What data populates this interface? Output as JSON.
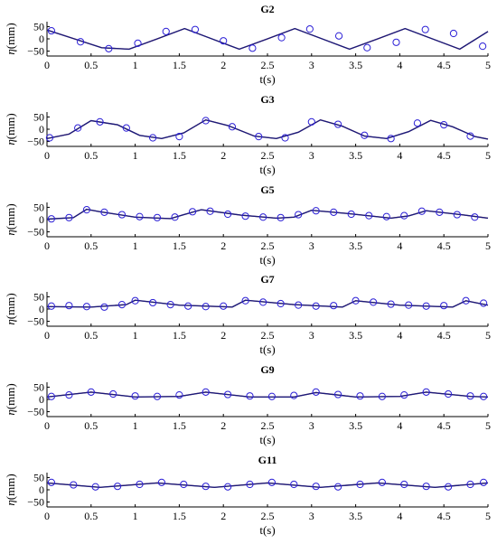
{
  "chart_data": [
    {
      "type": "line",
      "title": "G2",
      "xlabel": "t(s)",
      "ylabel_symbol": "η",
      "ylabel_unit": "(mm)",
      "xlim": [
        0,
        5
      ],
      "ylim": [
        -70,
        70
      ],
      "x_ticks": [
        0,
        0.5,
        1,
        1.5,
        2,
        2.5,
        3,
        3.5,
        4,
        4.5,
        5
      ],
      "x_tick_labels": [
        "0",
        "0.5",
        "1",
        "1.5",
        "2",
        "2.5",
        "3",
        "3.5",
        "4",
        "4.5",
        "5"
      ],
      "y_ticks": [
        50,
        0,
        -50
      ],
      "y_tick_labels": [
        "50",
        "0",
        "−50"
      ],
      "series": [
        {
          "kind": "line",
          "color": "#1a1a7a",
          "x": [
            0,
            0.31,
            0.62,
            0.93,
            1.25,
            1.56,
            1.87,
            2.18,
            2.5,
            2.81,
            3.12,
            3.43,
            3.75,
            4.06,
            4.37,
            4.68,
            5
          ],
          "y": [
            36,
            0,
            -36,
            -42,
            0,
            42,
            0,
            -42,
            0,
            42,
            0,
            -42,
            0,
            42,
            0,
            -42,
            30
          ]
        },
        {
          "kind": "markers",
          "color": "#2b1fd6",
          "x": [
            0.05,
            0.38,
            0.7,
            1.03,
            1.35,
            1.68,
            2.0,
            2.33,
            2.66,
            2.98,
            3.31,
            3.63,
            3.96,
            4.29,
            4.61,
            4.94
          ],
          "y": [
            33,
            -12,
            -40,
            -18,
            30,
            38,
            -8,
            -38,
            5,
            40,
            12,
            -36,
            -14,
            38,
            22,
            -30
          ]
        }
      ]
    },
    {
      "type": "line",
      "title": "G3",
      "xlabel": "t(s)",
      "ylabel_symbol": "η",
      "ylabel_unit": "(mm)",
      "xlim": [
        0,
        5
      ],
      "ylim": [
        -70,
        70
      ],
      "x_ticks": [
        0,
        0.5,
        1,
        1.5,
        2,
        2.5,
        3,
        3.5,
        4,
        4.5,
        5
      ],
      "x_tick_labels": [
        "0",
        "0.5",
        "1",
        "1.5",
        "2",
        "2.5",
        "3",
        "3.5",
        "4",
        "4.5",
        "5"
      ],
      "y_ticks": [
        50,
        0,
        -50
      ],
      "y_tick_labels": [
        "50",
        "0",
        "−50"
      ],
      "series": [
        {
          "kind": "line",
          "color": "#1a1a7a",
          "x": [
            0,
            0.25,
            0.5,
            0.8,
            1.05,
            1.3,
            1.55,
            1.8,
            2.05,
            2.35,
            2.6,
            2.85,
            3.1,
            3.35,
            3.6,
            3.85,
            4.1,
            4.35,
            4.6,
            4.85,
            5
          ],
          "y": [
            -38,
            -20,
            35,
            18,
            -25,
            -38,
            -15,
            38,
            15,
            -28,
            -38,
            -12,
            38,
            12,
            -28,
            -38,
            -10,
            36,
            10,
            -30,
            -40
          ]
        },
        {
          "kind": "markers",
          "color": "#2b1fd6",
          "x": [
            0.03,
            0.35,
            0.6,
            0.9,
            1.2,
            1.5,
            1.8,
            2.1,
            2.4,
            2.7,
            3.0,
            3.3,
            3.6,
            3.9,
            4.2,
            4.5,
            4.8
          ],
          "y": [
            -35,
            5,
            30,
            5,
            -35,
            -30,
            35,
            10,
            -30,
            -35,
            30,
            20,
            -25,
            -38,
            25,
            18,
            -28
          ]
        }
      ]
    },
    {
      "type": "line",
      "title": "G5",
      "xlabel": "t(s)",
      "ylabel_symbol": "η",
      "ylabel_unit": "(mm)",
      "xlim": [
        0,
        5
      ],
      "ylim": [
        -70,
        70
      ],
      "x_ticks": [
        0,
        0.5,
        1,
        1.5,
        2,
        2.5,
        3,
        3.5,
        4,
        4.5,
        5
      ],
      "x_tick_labels": [
        "0",
        "0.5",
        "1",
        "1.5",
        "2",
        "2.5",
        "3",
        "3.5",
        "4",
        "4.5",
        "5"
      ],
      "y_ticks": [
        50,
        0,
        -50
      ],
      "y_tick_labels": [
        "50",
        "0",
        "−50"
      ],
      "series": [
        {
          "kind": "line",
          "color": "#1a1a7a",
          "x": [
            0,
            0.3,
            0.45,
            0.6,
            1.0,
            1.4,
            1.55,
            1.75,
            2.2,
            2.6,
            2.8,
            3.0,
            3.4,
            3.9,
            4.1,
            4.3,
            4.7,
            5
          ],
          "y": [
            2,
            8,
            42,
            32,
            10,
            4,
            20,
            40,
            18,
            6,
            10,
            38,
            25,
            6,
            15,
            36,
            20,
            6
          ]
        },
        {
          "kind": "markers",
          "color": "#2b1fd6",
          "x": [
            0.05,
            0.25,
            0.45,
            0.65,
            0.85,
            1.05,
            1.25,
            1.45,
            1.65,
            1.85,
            2.05,
            2.25,
            2.45,
            2.65,
            2.85,
            3.05,
            3.25,
            3.45,
            3.65,
            3.85,
            4.05,
            4.25,
            4.45,
            4.65,
            4.85
          ],
          "y": [
            3,
            8,
            40,
            30,
            20,
            12,
            8,
            10,
            32,
            34,
            22,
            14,
            10,
            8,
            20,
            36,
            30,
            22,
            16,
            12,
            16,
            34,
            30,
            20,
            10
          ]
        }
      ]
    },
    {
      "type": "line",
      "title": "G7",
      "xlabel": "t(s)",
      "ylabel_symbol": "η",
      "ylabel_unit": "(mm)",
      "xlim": [
        0,
        5
      ],
      "ylim": [
        -70,
        70
      ],
      "x_ticks": [
        0,
        0.5,
        1,
        1.5,
        2,
        2.5,
        3,
        3.5,
        4,
        4.5,
        5
      ],
      "x_tick_labels": [
        "0",
        "0.5",
        "1",
        "1.5",
        "2",
        "2.5",
        "3",
        "3.5",
        "4",
        "4.5",
        "5"
      ],
      "y_ticks": [
        50,
        0,
        -50
      ],
      "y_tick_labels": [
        "50",
        "0",
        "−50"
      ],
      "series": [
        {
          "kind": "line",
          "color": "#1a1a7a",
          "x": [
            0,
            0.5,
            0.9,
            1.0,
            1.5,
            2.1,
            2.25,
            2.8,
            3.35,
            3.5,
            4.0,
            4.6,
            4.75,
            5
          ],
          "y": [
            10,
            8,
            18,
            36,
            16,
            8,
            36,
            18,
            8,
            34,
            16,
            8,
            34,
            16
          ]
        },
        {
          "kind": "markers",
          "color": "#2b1fd6",
          "x": [
            0.05,
            0.25,
            0.45,
            0.65,
            0.85,
            1.0,
            1.2,
            1.4,
            1.6,
            1.8,
            2.0,
            2.25,
            2.45,
            2.65,
            2.85,
            3.05,
            3.25,
            3.5,
            3.7,
            3.9,
            4.1,
            4.3,
            4.5,
            4.75,
            4.95
          ],
          "y": [
            12,
            14,
            10,
            8,
            18,
            34,
            26,
            18,
            12,
            10,
            12,
            34,
            28,
            22,
            16,
            12,
            14,
            34,
            28,
            20,
            16,
            12,
            14,
            34,
            24
          ]
        }
      ]
    },
    {
      "type": "line",
      "title": "G9",
      "xlabel": "t(s)",
      "ylabel_symbol": "η",
      "ylabel_unit": "(mm)",
      "xlim": [
        0,
        5
      ],
      "ylim": [
        -70,
        70
      ],
      "x_ticks": [
        0,
        0.5,
        1,
        1.5,
        2,
        2.5,
        3,
        3.5,
        4,
        4.5,
        5
      ],
      "x_tick_labels": [
        "0",
        "0.5",
        "1",
        "1.5",
        "2",
        "2.5",
        "3",
        "3.5",
        "4",
        "4.5",
        "5"
      ],
      "y_ticks": [
        50,
        0,
        -50
      ],
      "y_tick_labels": [
        "50",
        "0",
        "−50"
      ],
      "series": [
        {
          "kind": "line",
          "color": "#1a1a7a",
          "x": [
            0,
            0.5,
            1.0,
            1.5,
            1.8,
            2.3,
            2.8,
            3.05,
            3.5,
            4.0,
            4.3,
            4.8,
            5
          ],
          "y": [
            10,
            30,
            10,
            12,
            30,
            10,
            10,
            28,
            10,
            12,
            30,
            12,
            10
          ]
        },
        {
          "kind": "markers",
          "color": "#2b1fd6",
          "x": [
            0.05,
            0.25,
            0.5,
            0.75,
            1.0,
            1.25,
            1.5,
            1.8,
            2.05,
            2.3,
            2.55,
            2.8,
            3.05,
            3.3,
            3.55,
            3.8,
            4.05,
            4.3,
            4.55,
            4.8,
            4.95
          ],
          "y": [
            12,
            18,
            30,
            22,
            14,
            12,
            18,
            30,
            20,
            14,
            12,
            16,
            30,
            20,
            14,
            12,
            18,
            30,
            22,
            14,
            12
          ]
        }
      ]
    },
    {
      "type": "line",
      "title": "G11",
      "xlabel": "t(s)",
      "ylabel_symbol": "η",
      "ylabel_unit": "(mm)",
      "xlim": [
        0,
        5
      ],
      "ylim": [
        -70,
        70
      ],
      "x_ticks": [
        0,
        0.5,
        1,
        1.5,
        2,
        2.5,
        3,
        3.5,
        4,
        4.5,
        5
      ],
      "x_tick_labels": [
        "0",
        "0.5",
        "1",
        "1.5",
        "2",
        "2.5",
        "3",
        "3.5",
        "4",
        "4.5",
        "5"
      ],
      "y_ticks": [
        50,
        0,
        -50
      ],
      "y_tick_labels": [
        "50",
        "0",
        "−50"
      ],
      "series": [
        {
          "kind": "line",
          "color": "#1a1a7a",
          "x": [
            0,
            0.6,
            1.25,
            1.9,
            2.5,
            3.1,
            3.75,
            4.4,
            5
          ],
          "y": [
            28,
            10,
            28,
            10,
            28,
            10,
            28,
            10,
            28
          ]
        },
        {
          "kind": "markers",
          "color": "#2b1fd6",
          "x": [
            0.05,
            0.3,
            0.55,
            0.8,
            1.05,
            1.3,
            1.55,
            1.8,
            2.05,
            2.3,
            2.55,
            2.8,
            3.05,
            3.3,
            3.55,
            3.8,
            4.05,
            4.3,
            4.55,
            4.8,
            4.95
          ],
          "y": [
            30,
            20,
            12,
            14,
            22,
            30,
            22,
            14,
            12,
            22,
            30,
            22,
            14,
            12,
            22,
            30,
            22,
            14,
            12,
            22,
            30
          ]
        }
      ]
    }
  ]
}
